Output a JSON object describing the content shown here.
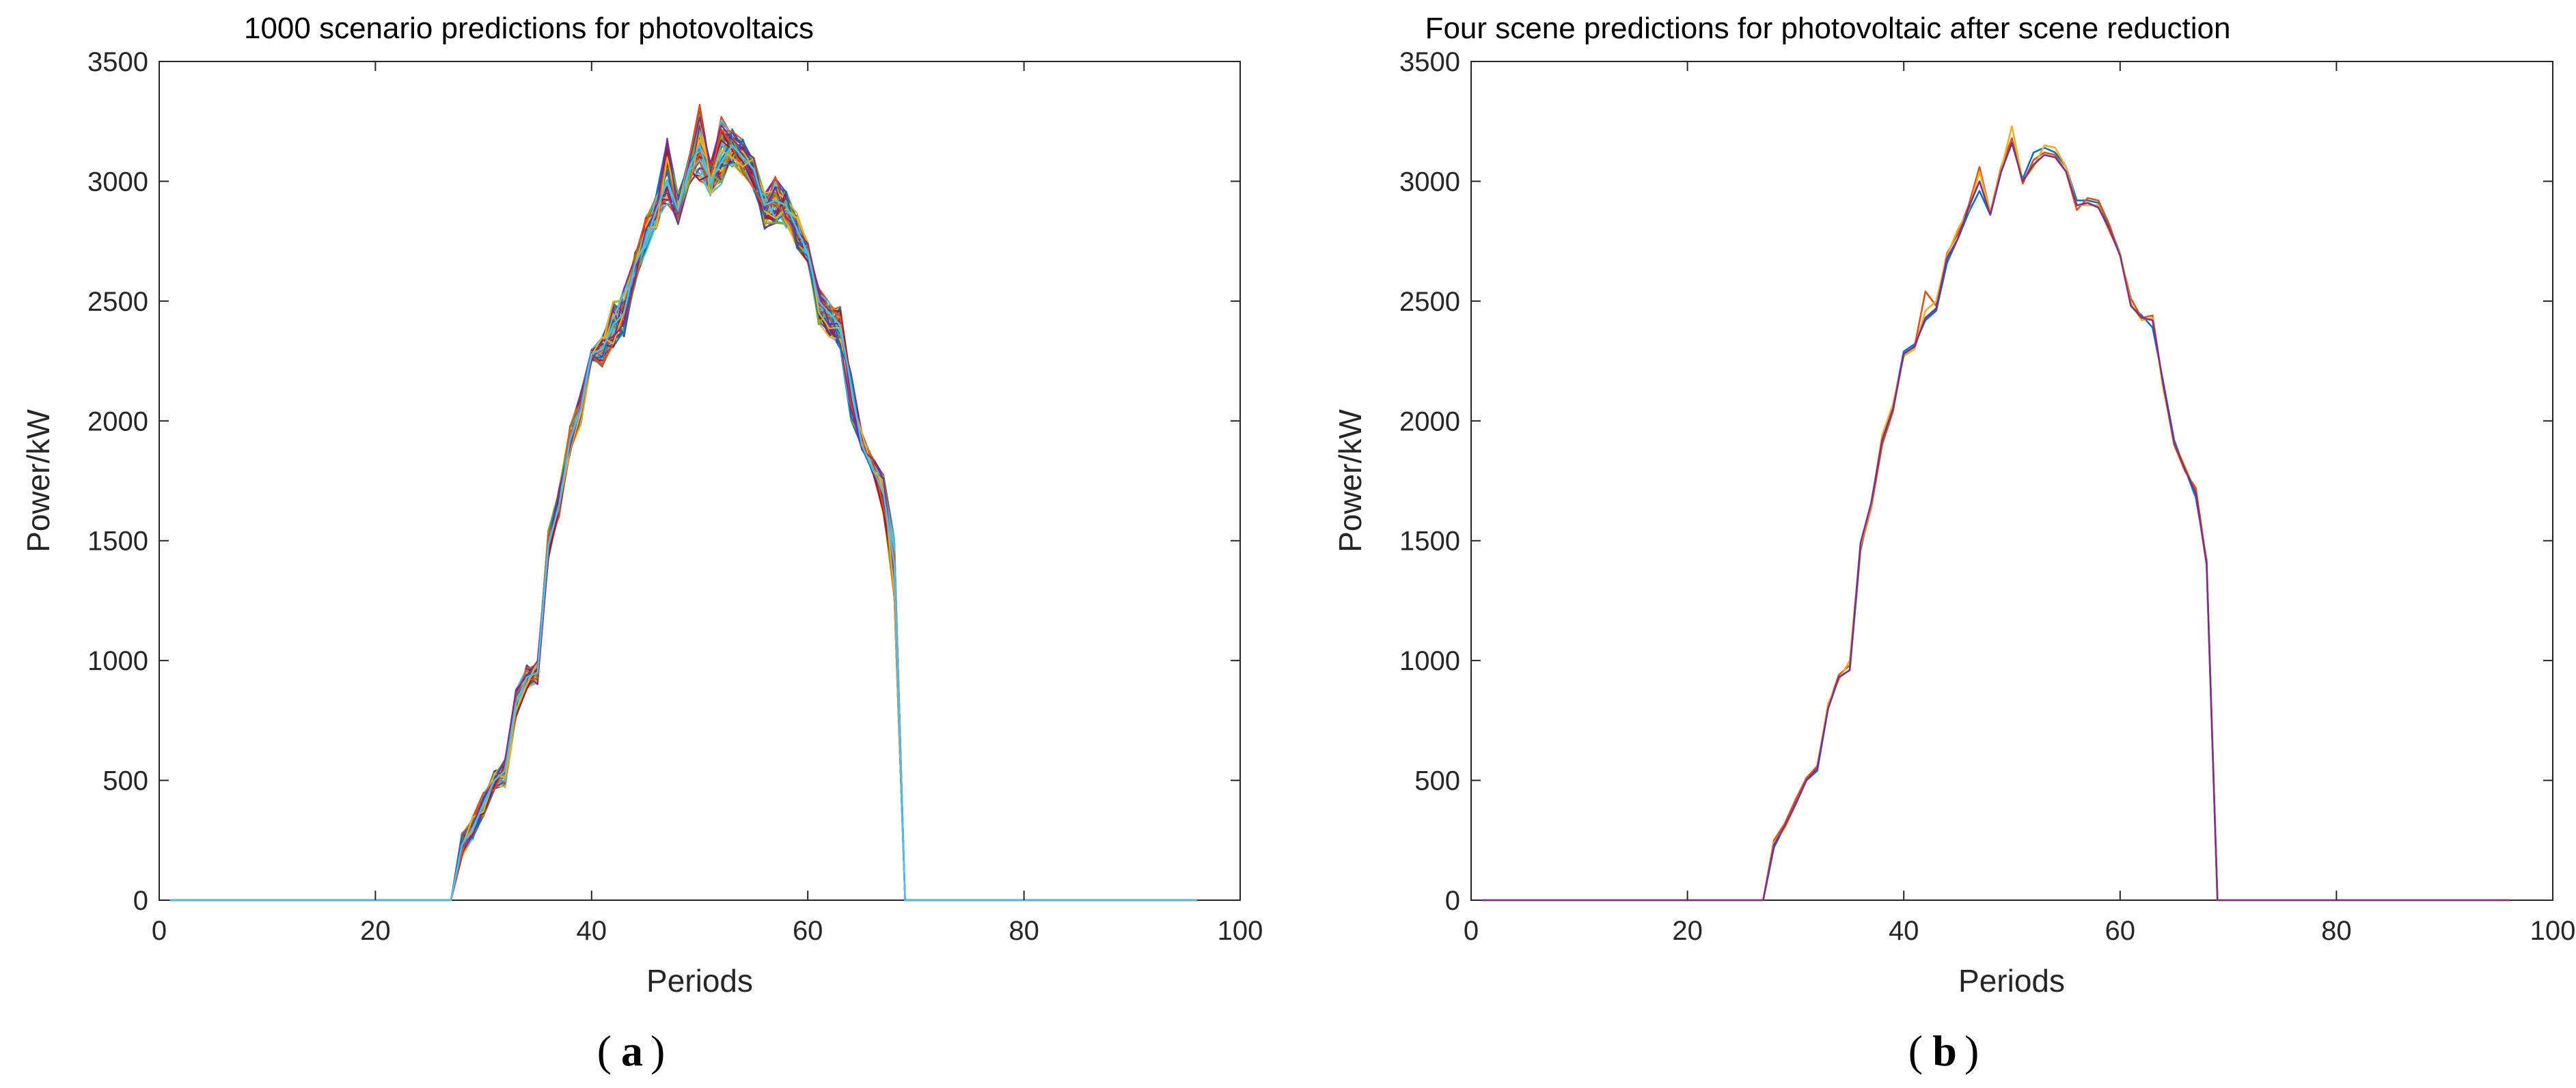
{
  "chart_data": [
    {
      "panel": "a",
      "type": "line",
      "title": "1000 scenario predictions for photovoltaics",
      "xlabel": "Periods",
      "ylabel": "Power/kW",
      "xlim": [
        0,
        100
      ],
      "ylim": [
        0,
        3500
      ],
      "xticks": [
        "0",
        "20",
        "40",
        "60",
        "80",
        "100"
      ],
      "yticks": [
        "0",
        "500",
        "1000",
        "1500",
        "2000",
        "2500",
        "3000",
        "3500"
      ],
      "grid": false,
      "legend": "none",
      "x": [
        1,
        2,
        3,
        4,
        5,
        6,
        7,
        8,
        9,
        10,
        11,
        12,
        13,
        14,
        15,
        16,
        17,
        18,
        19,
        20,
        21,
        22,
        23,
        24,
        25,
        26,
        27,
        28,
        29,
        30,
        31,
        32,
        33,
        34,
        35,
        36,
        37,
        38,
        39,
        40,
        41,
        42,
        43,
        44,
        45,
        46,
        47,
        48,
        49,
        50,
        51,
        52,
        53,
        54,
        55,
        56,
        57,
        58,
        59,
        60,
        61,
        62,
        63,
        64,
        65,
        66,
        67,
        68,
        69,
        70,
        71,
        72,
        73,
        74,
        75,
        76,
        77,
        78,
        79,
        80,
        81,
        82,
        83,
        84,
        85,
        86,
        87,
        88,
        89,
        90,
        91,
        92,
        93,
        94,
        95,
        96
      ],
      "base_values": [
        0,
        0,
        0,
        0,
        0,
        0,
        0,
        0,
        0,
        0,
        0,
        0,
        0,
        0,
        0,
        0,
        0,
        0,
        0,
        0,
        0,
        0,
        0,
        0,
        0,
        0,
        0,
        230,
        300,
        400,
        500,
        540,
        820,
        930,
        950,
        1480,
        1650,
        1920,
        2050,
        2280,
        2300,
        2400,
        2450,
        2650,
        2750,
        2880,
        3000,
        2880,
        3050,
        3150,
        3000,
        3080,
        3150,
        3100,
        3050,
        2900,
        2920,
        2900,
        2800,
        2700,
        2500,
        2450,
        2400,
        2150,
        1900,
        1800,
        1700,
        1400,
        0,
        0,
        0,
        0,
        0,
        0,
        0,
        0,
        0,
        0,
        0,
        0,
        0,
        0,
        0,
        0,
        0,
        0,
        0,
        0,
        0,
        0,
        0,
        0,
        0,
        0,
        0,
        0
      ],
      "band_max": [
        0,
        0,
        0,
        0,
        0,
        0,
        0,
        0,
        0,
        0,
        0,
        0,
        0,
        0,
        0,
        0,
        0,
        0,
        0,
        0,
        0,
        0,
        0,
        0,
        0,
        0,
        0,
        280,
        350,
        450,
        540,
        590,
        880,
        990,
        1000,
        1550,
        1720,
        1980,
        2120,
        2300,
        2350,
        2500,
        2560,
        2700,
        2850,
        2950,
        3180,
        2950,
        3100,
        3320,
        3080,
        3280,
        3220,
        3180,
        3100,
        2960,
        3020,
        2960,
        2870,
        2750,
        2560,
        2500,
        2480,
        2200,
        1950,
        1850,
        1780,
        1520,
        0,
        0,
        0,
        0,
        0,
        0,
        0,
        0,
        0,
        0,
        0,
        0,
        0,
        0,
        0,
        0,
        0,
        0,
        0,
        0,
        0,
        0,
        0,
        0,
        0,
        0,
        0,
        0
      ],
      "band_min": [
        0,
        0,
        0,
        0,
        0,
        0,
        0,
        0,
        0,
        0,
        0,
        0,
        0,
        0,
        0,
        0,
        0,
        0,
        0,
        0,
        0,
        0,
        0,
        0,
        0,
        0,
        0,
        180,
        250,
        350,
        460,
        470,
        760,
        880,
        900,
        1420,
        1600,
        1860,
        1980,
        2250,
        2220,
        2300,
        2350,
        2560,
        2700,
        2800,
        2900,
        2820,
        2980,
        3000,
        2940,
        2980,
        3060,
        3020,
        2960,
        2800,
        2820,
        2800,
        2720,
        2660,
        2400,
        2350,
        2300,
        2000,
        1880,
        1780,
        1600,
        1260,
        0,
        0,
        0,
        0,
        0,
        0,
        0,
        0,
        0,
        0,
        0,
        0,
        0,
        0,
        0,
        0,
        0,
        0,
        0,
        0,
        0,
        0,
        0,
        0,
        0,
        0,
        0,
        0
      ],
      "series_colors": [
        "#0072BD",
        "#D95319",
        "#EDB120",
        "#7E2F8E",
        "#77AC30",
        "#4DBEEE",
        "#A2142F"
      ]
    },
    {
      "panel": "b",
      "type": "line",
      "title": "Four scene predictions for photovoltaic after scene reduction",
      "xlabel": "Periods",
      "ylabel": "Power/kW",
      "xlim": [
        0,
        100
      ],
      "ylim": [
        0,
        3500
      ],
      "xticks": [
        "0",
        "20",
        "40",
        "60",
        "80",
        "100"
      ],
      "yticks": [
        "0",
        "500",
        "1000",
        "1500",
        "2000",
        "2500",
        "3000",
        "3500"
      ],
      "grid": false,
      "legend": "none",
      "x": [
        1,
        2,
        3,
        4,
        5,
        6,
        7,
        8,
        9,
        10,
        11,
        12,
        13,
        14,
        15,
        16,
        17,
        18,
        19,
        20,
        21,
        22,
        23,
        24,
        25,
        26,
        27,
        28,
        29,
        30,
        31,
        32,
        33,
        34,
        35,
        36,
        37,
        38,
        39,
        40,
        41,
        42,
        43,
        44,
        45,
        46,
        47,
        48,
        49,
        50,
        51,
        52,
        53,
        54,
        55,
        56,
        57,
        58,
        59,
        60,
        61,
        62,
        63,
        64,
        65,
        66,
        67,
        68,
        69,
        70,
        71,
        72,
        73,
        74,
        75,
        76,
        77,
        78,
        79,
        80,
        81,
        82,
        83,
        84,
        85,
        86,
        87,
        88,
        89,
        90,
        91,
        92,
        93,
        94,
        95,
        96
      ],
      "series": [
        {
          "color": "#0072BD",
          "values": [
            0,
            0,
            0,
            0,
            0,
            0,
            0,
            0,
            0,
            0,
            0,
            0,
            0,
            0,
            0,
            0,
            0,
            0,
            0,
            0,
            0,
            0,
            0,
            0,
            0,
            0,
            0,
            220,
            310,
            410,
            500,
            540,
            800,
            930,
            960,
            1460,
            1660,
            1920,
            2060,
            2290,
            2320,
            2420,
            2460,
            2660,
            2760,
            2870,
            2960,
            2860,
            3040,
            3160,
            3010,
            3120,
            3140,
            3120,
            3060,
            2920,
            2920,
            2910,
            2810,
            2700,
            2480,
            2440,
            2390,
            2160,
            1920,
            1800,
            1680,
            1420,
            0,
            0,
            0,
            0,
            0,
            0,
            0,
            0,
            0,
            0,
            0,
            0,
            0,
            0,
            0,
            0,
            0,
            0,
            0,
            0,
            0,
            0,
            0,
            0,
            0,
            0,
            0,
            0
          ]
        },
        {
          "color": "#D95319",
          "values": [
            0,
            0,
            0,
            0,
            0,
            0,
            0,
            0,
            0,
            0,
            0,
            0,
            0,
            0,
            0,
            0,
            0,
            0,
            0,
            0,
            0,
            0,
            0,
            0,
            0,
            0,
            0,
            250,
            320,
            420,
            510,
            560,
            810,
            940,
            980,
            1470,
            1640,
            1900,
            2040,
            2280,
            2310,
            2540,
            2480,
            2700,
            2780,
            2900,
            3060,
            2870,
            3060,
            3180,
            2990,
            3090,
            3120,
            3110,
            3040,
            2880,
            2930,
            2920,
            2820,
            2690,
            2510,
            2430,
            2440,
            2140,
            1900,
            1790,
            1720,
            1410,
            0,
            0,
            0,
            0,
            0,
            0,
            0,
            0,
            0,
            0,
            0,
            0,
            0,
            0,
            0,
            0,
            0,
            0,
            0,
            0,
            0,
            0,
            0,
            0,
            0,
            0,
            0,
            0
          ]
        },
        {
          "color": "#EDB120",
          "values": [
            0,
            0,
            0,
            0,
            0,
            0,
            0,
            0,
            0,
            0,
            0,
            0,
            0,
            0,
            0,
            0,
            0,
            0,
            0,
            0,
            0,
            0,
            0,
            0,
            0,
            0,
            0,
            240,
            300,
            400,
            500,
            550,
            820,
            920,
            1000,
            1480,
            1650,
            1940,
            2070,
            2270,
            2300,
            2460,
            2500,
            2690,
            2800,
            2880,
            3040,
            2870,
            3050,
            3230,
            3000,
            3060,
            3150,
            3140,
            3060,
            2900,
            2900,
            2900,
            2790,
            2700,
            2490,
            2420,
            2430,
            2130,
            1910,
            1810,
            1700,
            1400,
            0,
            0,
            0,
            0,
            0,
            0,
            0,
            0,
            0,
            0,
            0,
            0,
            0,
            0,
            0,
            0,
            0,
            0,
            0,
            0,
            0,
            0,
            0,
            0,
            0,
            0,
            0,
            0
          ]
        },
        {
          "color": "#7E2F8E",
          "values": [
            0,
            0,
            0,
            0,
            0,
            0,
            0,
            0,
            0,
            0,
            0,
            0,
            0,
            0,
            0,
            0,
            0,
            0,
            0,
            0,
            0,
            0,
            0,
            0,
            0,
            0,
            0,
            230,
            310,
            400,
            500,
            550,
            800,
            930,
            960,
            1490,
            1660,
            1920,
            2050,
            2280,
            2310,
            2430,
            2470,
            2680,
            2760,
            2890,
            3000,
            2860,
            3040,
            3160,
            3000,
            3070,
            3110,
            3100,
            3040,
            2900,
            2910,
            2890,
            2800,
            2690,
            2480,
            2430,
            2420,
            2150,
            1910,
            1800,
            1700,
            1400,
            0,
            0,
            0,
            0,
            0,
            0,
            0,
            0,
            0,
            0,
            0,
            0,
            0,
            0,
            0,
            0,
            0,
            0,
            0,
            0,
            0,
            0,
            0,
            0,
            0,
            0,
            0,
            0
          ]
        }
      ]
    }
  ],
  "panel_labels": {
    "a": "a",
    "b": "b"
  }
}
